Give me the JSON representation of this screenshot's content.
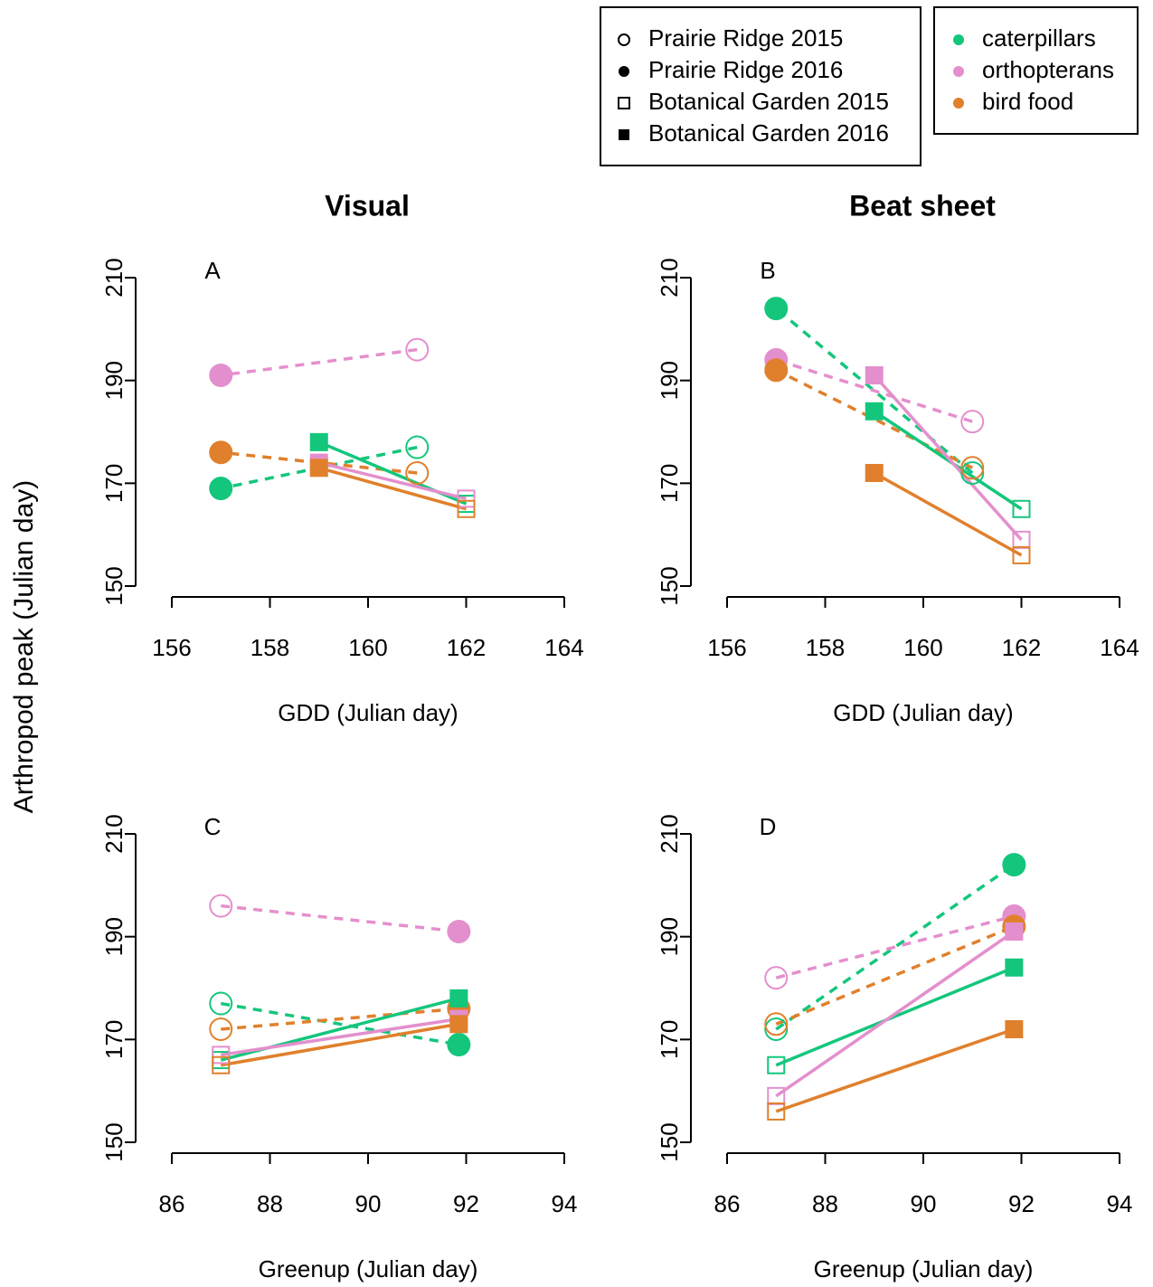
{
  "y_label": "Arthropod peak (Julian day)",
  "legend": {
    "sites": [
      {
        "label": "Prairie Ridge 2015",
        "shape": "circle",
        "filled": false
      },
      {
        "label": "Prairie Ridge 2016",
        "shape": "circle",
        "filled": true
      },
      {
        "label": "Botanical Garden 2015",
        "shape": "square",
        "filled": false
      },
      {
        "label": "Botanical Garden 2016",
        "shape": "square",
        "filled": true
      }
    ],
    "taxa": [
      {
        "label": "caterpillars",
        "color": "#14c67c"
      },
      {
        "label": "orthopterans",
        "color": "#e48fcd"
      },
      {
        "label": "bird food",
        "color": "#e0802c"
      }
    ]
  },
  "chart_data": [
    {
      "type": "line",
      "title": "Visual",
      "panel_label": "A",
      "x_label": "GDD (Julian day)",
      "xlim": [
        156,
        164
      ],
      "xticks": [
        156,
        158,
        160,
        162,
        164
      ],
      "ylim": [
        150,
        210
      ],
      "yticks": [
        150,
        170,
        190,
        210
      ],
      "series": [
        {
          "color": "#14c67c",
          "line": "dashed",
          "shape": "circle",
          "filled": [
            false,
            true
          ],
          "x": [
            161,
            157
          ],
          "values": [
            177,
            169
          ]
        },
        {
          "color": "#e48fcd",
          "line": "dashed",
          "shape": "circle",
          "filled": [
            false,
            true
          ],
          "x": [
            161,
            157
          ],
          "values": [
            196,
            191
          ]
        },
        {
          "color": "#e0802c",
          "line": "dashed",
          "shape": "circle",
          "filled": [
            false,
            true
          ],
          "x": [
            161,
            157
          ],
          "values": [
            172,
            176
          ]
        },
        {
          "color": "#14c67c",
          "line": "solid",
          "shape": "square",
          "filled": [
            false,
            true
          ],
          "x": [
            162,
            159
          ],
          "values": [
            166,
            178
          ]
        },
        {
          "color": "#e48fcd",
          "line": "solid",
          "shape": "square",
          "filled": [
            false,
            true
          ],
          "x": [
            162,
            159
          ],
          "values": [
            167,
            174
          ]
        },
        {
          "color": "#e0802c",
          "line": "solid",
          "shape": "square",
          "filled": [
            false,
            true
          ],
          "x": [
            162,
            159
          ],
          "values": [
            165,
            173
          ]
        }
      ]
    },
    {
      "type": "line",
      "title": "Beat sheet",
      "panel_label": "B",
      "x_label": "GDD (Julian day)",
      "xlim": [
        156,
        164
      ],
      "xticks": [
        156,
        158,
        160,
        162,
        164
      ],
      "ylim": [
        150,
        210
      ],
      "yticks": [
        150,
        170,
        190,
        210
      ],
      "series": [
        {
          "color": "#14c67c",
          "line": "dashed",
          "shape": "circle",
          "filled": [
            false,
            true
          ],
          "x": [
            161,
            157
          ],
          "values": [
            172,
            204
          ]
        },
        {
          "color": "#e48fcd",
          "line": "dashed",
          "shape": "circle",
          "filled": [
            false,
            true
          ],
          "x": [
            161,
            157
          ],
          "values": [
            182,
            194
          ]
        },
        {
          "color": "#e0802c",
          "line": "dashed",
          "shape": "circle",
          "filled": [
            false,
            true
          ],
          "x": [
            161,
            157
          ],
          "values": [
            173,
            192
          ]
        },
        {
          "color": "#14c67c",
          "line": "solid",
          "shape": "square",
          "filled": [
            false,
            true
          ],
          "x": [
            162,
            159
          ],
          "values": [
            165,
            184
          ]
        },
        {
          "color": "#e48fcd",
          "line": "solid",
          "shape": "square",
          "filled": [
            false,
            true
          ],
          "x": [
            162,
            159
          ],
          "values": [
            159,
            191
          ]
        },
        {
          "color": "#e0802c",
          "line": "solid",
          "shape": "square",
          "filled": [
            false,
            true
          ],
          "x": [
            162,
            159
          ],
          "values": [
            156,
            172
          ]
        }
      ]
    },
    {
      "type": "line",
      "panel_label": "C",
      "x_label": "Greenup (Julian day)",
      "xlim": [
        86,
        94
      ],
      "xticks": [
        86,
        88,
        90,
        92,
        94
      ],
      "ylim": [
        150,
        210
      ],
      "yticks": [
        150,
        170,
        190,
        210
      ],
      "series": [
        {
          "color": "#14c67c",
          "line": "dashed",
          "shape": "circle",
          "filled": [
            false,
            true
          ],
          "x": [
            87,
            91.85
          ],
          "values": [
            177,
            169
          ]
        },
        {
          "color": "#e48fcd",
          "line": "dashed",
          "shape": "circle",
          "filled": [
            false,
            true
          ],
          "x": [
            87,
            91.85
          ],
          "values": [
            196,
            191
          ]
        },
        {
          "color": "#e0802c",
          "line": "dashed",
          "shape": "circle",
          "filled": [
            false,
            true
          ],
          "x": [
            87,
            91.85
          ],
          "values": [
            172,
            176
          ]
        },
        {
          "color": "#14c67c",
          "line": "solid",
          "shape": "square",
          "filled": [
            false,
            true
          ],
          "x": [
            87,
            91.85
          ],
          "values": [
            166,
            178
          ]
        },
        {
          "color": "#e48fcd",
          "line": "solid",
          "shape": "square",
          "filled": [
            false,
            true
          ],
          "x": [
            87,
            91.85
          ],
          "values": [
            167,
            174
          ]
        },
        {
          "color": "#e0802c",
          "line": "solid",
          "shape": "square",
          "filled": [
            false,
            true
          ],
          "x": [
            87,
            91.85
          ],
          "values": [
            165,
            173
          ]
        }
      ]
    },
    {
      "type": "line",
      "panel_label": "D",
      "x_label": "Greenup (Julian day)",
      "xlim": [
        86,
        94
      ],
      "xticks": [
        86,
        88,
        90,
        92,
        94
      ],
      "ylim": [
        150,
        210
      ],
      "yticks": [
        150,
        170,
        190,
        210
      ],
      "series": [
        {
          "color": "#14c67c",
          "line": "dashed",
          "shape": "circle",
          "filled": [
            false,
            true
          ],
          "x": [
            87,
            91.85
          ],
          "values": [
            172,
            204
          ]
        },
        {
          "color": "#e48fcd",
          "line": "dashed",
          "shape": "circle",
          "filled": [
            false,
            true
          ],
          "x": [
            87,
            91.85
          ],
          "values": [
            182,
            194
          ]
        },
        {
          "color": "#e0802c",
          "line": "dashed",
          "shape": "circle",
          "filled": [
            false,
            true
          ],
          "x": [
            87,
            91.85
          ],
          "values": [
            173,
            192
          ]
        },
        {
          "color": "#14c67c",
          "line": "solid",
          "shape": "square",
          "filled": [
            false,
            true
          ],
          "x": [
            87,
            91.85
          ],
          "values": [
            165,
            184
          ]
        },
        {
          "color": "#e48fcd",
          "line": "solid",
          "shape": "square",
          "filled": [
            false,
            true
          ],
          "x": [
            87,
            91.85
          ],
          "values": [
            159,
            191
          ]
        },
        {
          "color": "#e0802c",
          "line": "solid",
          "shape": "square",
          "filled": [
            false,
            true
          ],
          "x": [
            87,
            91.85
          ],
          "values": [
            156,
            172
          ]
        }
      ]
    }
  ]
}
